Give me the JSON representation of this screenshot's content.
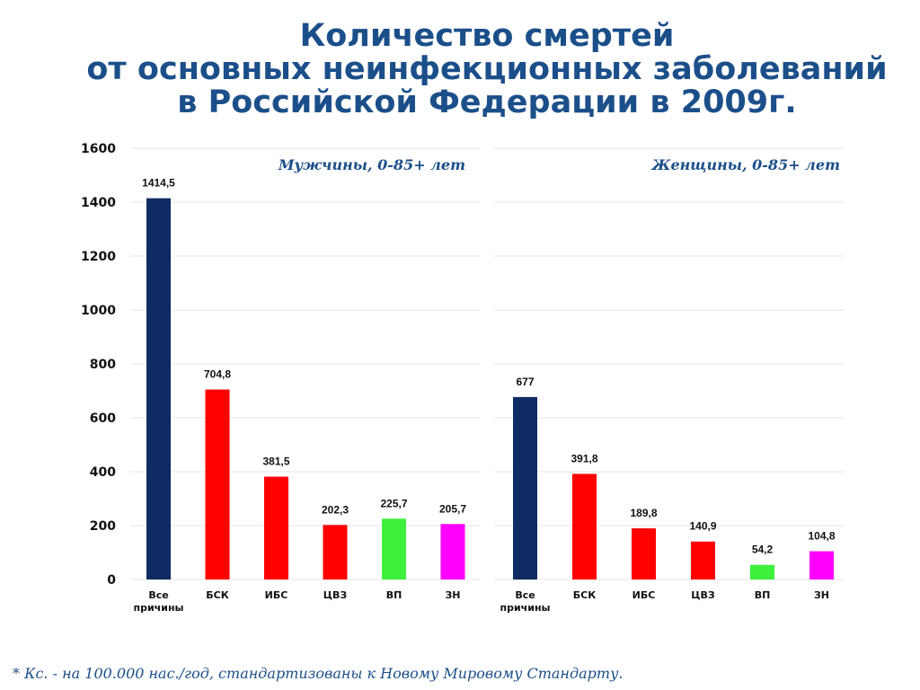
{
  "title": {
    "line1": "Количество смертей",
    "line2": "от основных неинфекционных заболеваний",
    "line3": "в Российской Федерации в 2009г."
  },
  "footnote": "* Кс. - на 100.000 нас./год, стандартизованы к Новому Мировому Стандарту.",
  "chart_data": {
    "type": "bar",
    "ylim": [
      0,
      1600
    ],
    "yticks": [
      "0",
      "200",
      "400",
      "600",
      "800",
      "1000",
      "1200",
      "1400",
      "1600"
    ],
    "grid": true,
    "panels": [
      {
        "label": "Мужчины, 0-85+ лет",
        "categories": [
          [
            "Все",
            "причины"
          ],
          [
            "БСК"
          ],
          [
            "ИБС"
          ],
          [
            "ЦВЗ"
          ],
          [
            "ВП"
          ],
          [
            "ЗН"
          ]
        ],
        "values": [
          1414.5,
          704.8,
          381.5,
          202.3,
          225.7,
          205.7
        ],
        "value_labels": [
          "1414,5",
          "704,8",
          "381,5",
          "202,3",
          "225,7",
          "205,7"
        ],
        "colors": [
          "#0f2b63",
          "#ff0000",
          "#ff0000",
          "#ff0000",
          "#3cf03c",
          "#ff00ff"
        ]
      },
      {
        "label": "Женщины, 0-85+ лет",
        "categories": [
          [
            "Все",
            "причины"
          ],
          [
            "БСК"
          ],
          [
            "ИБС"
          ],
          [
            "ЦВЗ"
          ],
          [
            "ВП"
          ],
          [
            "ЗН"
          ]
        ],
        "values": [
          677,
          391.8,
          189.8,
          140.9,
          54.2,
          104.8
        ],
        "value_labels": [
          "677",
          "391,8",
          "189,8",
          "140,9",
          "54,2",
          "104,8"
        ],
        "colors": [
          "#0f2b63",
          "#ff0000",
          "#ff0000",
          "#ff0000",
          "#3cf03c",
          "#ff00ff"
        ]
      }
    ]
  }
}
